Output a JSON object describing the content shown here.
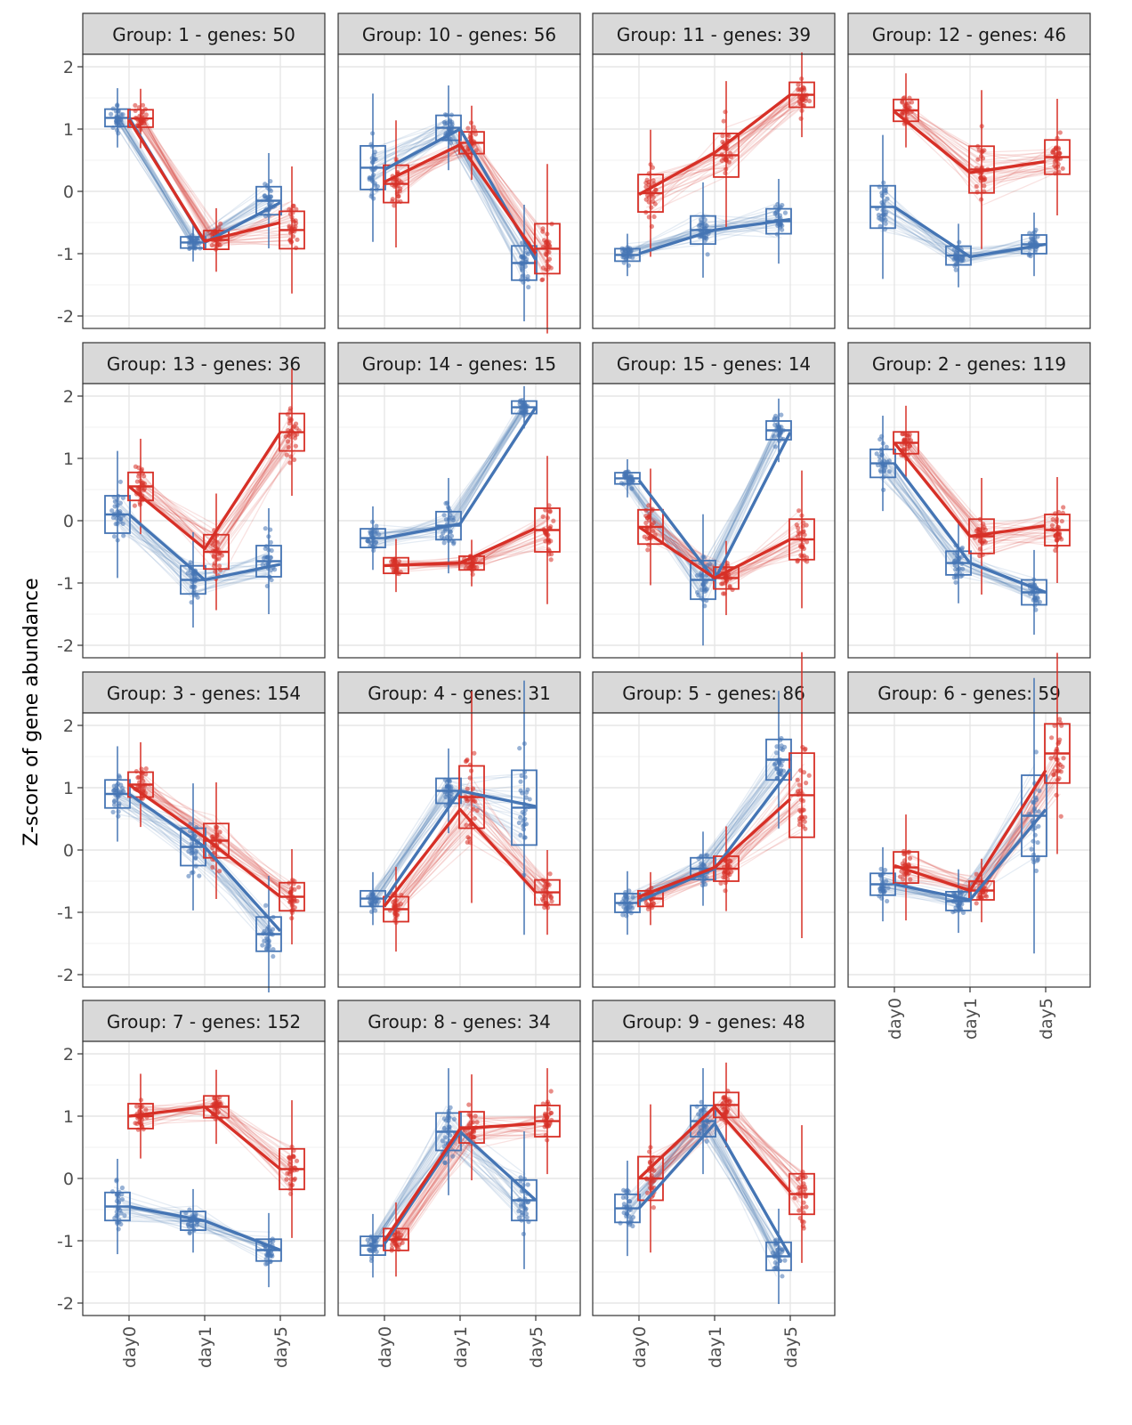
{
  "chart_data": {
    "type": "faceted-boxplot-line",
    "ylabel": "Z-score of gene abundance",
    "xlabel": "",
    "categories": [
      "day0",
      "day1",
      "day5"
    ],
    "ylim": [
      -2.2,
      2.2
    ],
    "yticks": [
      2,
      1,
      0,
      -1,
      -2
    ],
    "ytick_labels": [
      "2",
      "1",
      "0",
      "-1",
      "-2"
    ],
    "colors": {
      "blue": "#4575b4",
      "red": "#d73027"
    },
    "facets": [
      {
        "title": "Group:  1 - genes: 50",
        "blue": [
          1.18,
          -0.82,
          -0.18
        ],
        "red": [
          1.15,
          -0.8,
          -0.5
        ],
        "blue_iqr": [
          0.28,
          0.18,
          0.45
        ],
        "red_iqr": [
          0.28,
          0.3,
          0.6
        ],
        "blue_med": [
          1.18,
          -0.82,
          -0.15
        ],
        "red_med": [
          1.17,
          -0.78,
          -0.62
        ]
      },
      {
        "title": "Group:  10 - genes: 56",
        "blue": [
          0.35,
          1.0,
          -1.1
        ],
        "red": [
          0.15,
          0.75,
          -1.0
        ],
        "blue_iqr": [
          0.7,
          0.4,
          0.55
        ],
        "red_iqr": [
          0.6,
          0.35,
          0.8
        ],
        "blue_med": [
          0.38,
          1.02,
          -1.15
        ],
        "red_med": [
          0.12,
          0.78,
          -0.92
        ]
      },
      {
        "title": "Group:  11 - genes: 39",
        "blue": [
          -1.0,
          -0.62,
          -0.45
        ],
        "red": [
          -0.05,
          0.62,
          1.55
        ],
        "blue_iqr": [
          0.2,
          0.45,
          0.4
        ],
        "red_iqr": [
          0.6,
          0.7,
          0.4
        ],
        "blue_med": [
          -1.02,
          -0.62,
          -0.48
        ],
        "red_med": [
          -0.03,
          0.58,
          1.55
        ]
      },
      {
        "title": "Group:  12 - genes: 46",
        "blue": [
          -0.25,
          -1.05,
          -0.85
        ],
        "red": [
          1.28,
          0.3,
          0.48
        ],
        "blue_iqr": [
          0.68,
          0.3,
          0.3
        ],
        "red_iqr": [
          0.35,
          0.75,
          0.55
        ],
        "blue_med": [
          -0.25,
          -1.03,
          -0.85
        ],
        "red_med": [
          1.3,
          0.35,
          0.55
        ]
      },
      {
        "title": "Group:  13 - genes: 36",
        "blue": [
          0.1,
          -0.95,
          -0.7
        ],
        "red": [
          0.55,
          -0.45,
          1.42
        ],
        "blue_iqr": [
          0.6,
          0.45,
          0.5
        ],
        "red_iqr": [
          0.45,
          0.55,
          0.6
        ],
        "blue_med": [
          0.1,
          -0.95,
          -0.65
        ],
        "red_med": [
          0.55,
          -0.5,
          1.42
        ]
      },
      {
        "title": "Group:  14 - genes: 15",
        "blue": [
          -0.28,
          -0.05,
          1.82
        ],
        "red": [
          -0.72,
          -0.68,
          -0.12
        ],
        "blue_iqr": [
          0.3,
          0.45,
          0.2
        ],
        "red_iqr": [
          0.25,
          0.22,
          0.7
        ],
        "blue_med": [
          -0.28,
          -0.08,
          1.82
        ],
        "red_med": [
          -0.72,
          -0.68,
          -0.15
        ]
      },
      {
        "title": "Group:  15 - genes: 14",
        "blue": [
          0.65,
          -0.95,
          1.42
        ],
        "red": [
          -0.1,
          -0.92,
          -0.3
        ],
        "blue_iqr": [
          0.18,
          0.62,
          0.3
        ],
        "red_iqr": [
          0.55,
          0.35,
          0.65
        ],
        "blue_med": [
          0.68,
          -0.95,
          1.45
        ],
        "red_med": [
          -0.1,
          -0.92,
          -0.3
        ]
      },
      {
        "title": "Group:  2 - genes: 119",
        "blue": [
          0.92,
          -0.68,
          -1.15
        ],
        "red": [
          1.25,
          -0.25,
          -0.08
        ],
        "blue_iqr": [
          0.45,
          0.38,
          0.4
        ],
        "red_iqr": [
          0.35,
          0.55,
          0.5
        ],
        "blue_med": [
          0.92,
          -0.68,
          -1.15
        ],
        "red_med": [
          1.25,
          -0.25,
          -0.15
        ]
      },
      {
        "title": "Group:  3 - genes: 154",
        "blue": [
          0.9,
          0.05,
          -1.3
        ],
        "red": [
          1.05,
          0.2,
          -0.75
        ],
        "blue_iqr": [
          0.45,
          0.6,
          0.55
        ],
        "red_iqr": [
          0.4,
          0.55,
          0.45
        ],
        "blue_med": [
          0.9,
          0.05,
          -1.35
        ],
        "red_med": [
          1.05,
          0.15,
          -0.75
        ]
      },
      {
        "title": "Group:  4 - genes: 31",
        "blue": [
          -0.8,
          0.95,
          0.7
        ],
        "red": [
          -0.9,
          0.65,
          -0.68
        ],
        "blue_iqr": [
          0.25,
          0.4,
          1.2
        ],
        "red_iqr": [
          0.4,
          1.0,
          0.4
        ],
        "blue_med": [
          -0.78,
          0.95,
          0.68
        ],
        "red_med": [
          -0.95,
          0.85,
          -0.68
        ]
      },
      {
        "title": "Group:  5 - genes: 86",
        "blue": [
          -0.82,
          -0.3,
          1.3
        ],
        "red": [
          -0.75,
          -0.28,
          0.82
        ],
        "blue_iqr": [
          0.3,
          0.35,
          0.65
        ],
        "red_iqr": [
          0.25,
          0.4,
          1.35
        ],
        "blue_med": [
          -0.85,
          -0.3,
          1.45
        ],
        "red_med": [
          -0.78,
          -0.3,
          0.88
        ]
      },
      {
        "title": "Group:  6 - genes: 59",
        "blue": [
          -0.55,
          -0.8,
          0.65
        ],
        "red": [
          -0.25,
          -0.65,
          1.28
        ],
        "blue_iqr": [
          0.35,
          0.3,
          1.3
        ],
        "red_iqr": [
          0.5,
          0.3,
          0.95
        ],
        "blue_med": [
          -0.55,
          -0.82,
          0.55
        ],
        "red_med": [
          -0.28,
          -0.65,
          1.55
        ]
      },
      {
        "title": "Group:  7 - genes: 152",
        "blue": [
          -0.45,
          -0.68,
          -1.15
        ],
        "red": [
          1.0,
          1.15,
          0.15
        ],
        "blue_iqr": [
          0.45,
          0.3,
          0.35
        ],
        "red_iqr": [
          0.4,
          0.35,
          0.65
        ],
        "blue_med": [
          -0.45,
          -0.68,
          -1.15
        ],
        "red_med": [
          1.0,
          1.15,
          0.15
        ]
      },
      {
        "title": "Group:  8 - genes: 34",
        "blue": [
          -1.05,
          0.75,
          -0.35
        ],
        "red": [
          -1.0,
          0.8,
          0.88
        ],
        "blue_iqr": [
          0.3,
          0.6,
          0.65
        ],
        "red_iqr": [
          0.35,
          0.5,
          0.5
        ],
        "blue_med": [
          -1.08,
          0.75,
          -0.35
        ],
        "red_med": [
          -0.98,
          0.82,
          0.92
        ]
      },
      {
        "title": "Group:  9 - genes: 48",
        "blue": [
          -0.48,
          0.88,
          -1.25
        ],
        "red": [
          0.0,
          1.15,
          -0.22
        ],
        "blue_iqr": [
          0.45,
          0.5,
          0.45
        ],
        "red_iqr": [
          0.7,
          0.4,
          0.65
        ],
        "blue_med": [
          -0.48,
          0.92,
          -1.25
        ],
        "red_med": [
          0.0,
          1.18,
          -0.25
        ]
      }
    ]
  }
}
